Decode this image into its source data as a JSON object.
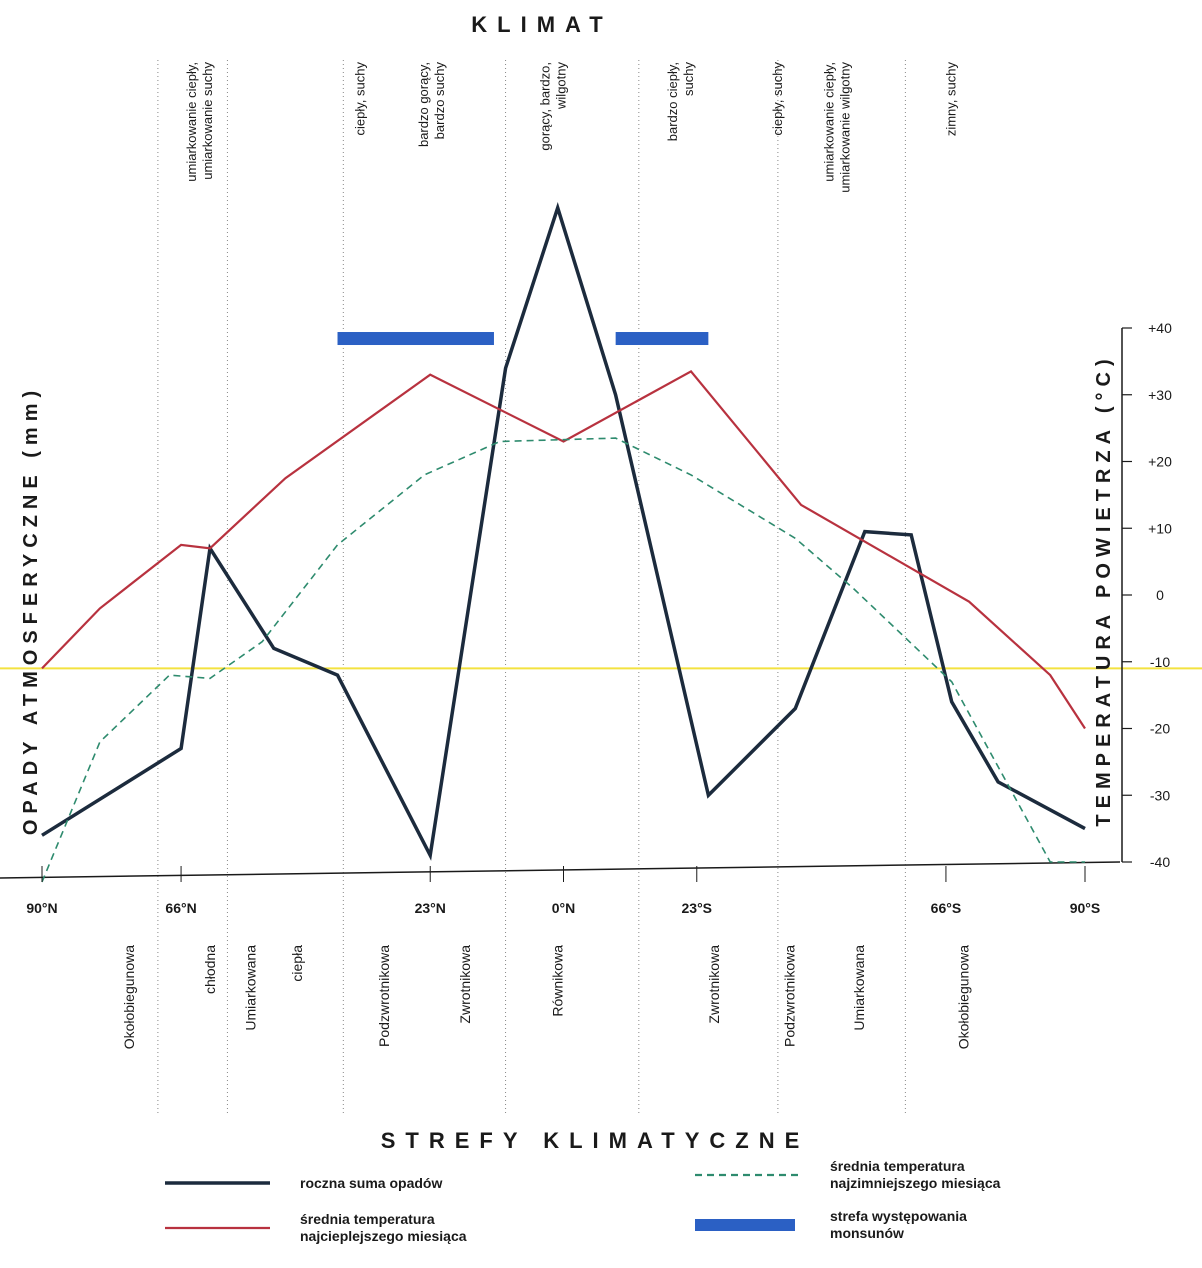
{
  "chart_data": {
    "type": "line",
    "title": "KLIMAT",
    "xlabel": "STREFY KLIMATYCZNE",
    "ylabel_left": "OPADY ATMOSFERYCZNE (mm)",
    "ylabel_right": "TEMPERATURA POWIETRZA (°C)",
    "x_ticks": [
      {
        "lat": 90,
        "label": "90°N"
      },
      {
        "lat": 66,
        "label": "66°N"
      },
      {
        "lat": 23,
        "label": "23°N"
      },
      {
        "lat": 0,
        "label": "0°N"
      },
      {
        "lat": -23,
        "label": "23°S"
      },
      {
        "lat": -66,
        "label": "66°S"
      },
      {
        "lat": -90,
        "label": "90°S"
      }
    ],
    "y_right_ticks": [
      "+40",
      "+30",
      "+20",
      "+10",
      "0",
      "-10",
      "-20",
      "-30",
      "-40"
    ],
    "y_right_values": [
      40,
      30,
      20,
      10,
      0,
      -10,
      -20,
      -30,
      -40
    ],
    "ylim_temp": [
      -40,
      40
    ],
    "reference_line_temp": -11,
    "climate_labels": [
      {
        "lat": 62,
        "lines": [
          "umiarkowanie ciepły,",
          "umiarkowanie suchy"
        ]
      },
      {
        "lat": 35,
        "lines": [
          "ciepły, suchy"
        ]
      },
      {
        "lat": 22,
        "lines": [
          "bardzo gorący,",
          "bardzo suchy"
        ]
      },
      {
        "lat": 1,
        "lines": [
          "gorący, bardzo,",
          "wilgotny"
        ]
      },
      {
        "lat": -21,
        "lines": [
          "bardzo ciepły,",
          "suchy"
        ]
      },
      {
        "lat": -37,
        "lines": [
          "ciepły, suchy"
        ]
      },
      {
        "lat": -48,
        "lines": [
          "umiarkowanie ciepły,",
          "umiarkowanie wilgotny"
        ]
      },
      {
        "lat": -67,
        "lines": [
          "zimny, suchy"
        ]
      }
    ],
    "zones": [
      {
        "lat": 75,
        "label": "Okołobiegunowa"
      },
      {
        "lat": 61,
        "label": "chłodna"
      },
      {
        "lat": 54,
        "label": "Umiarkowana"
      },
      {
        "lat": 46,
        "label": "ciepła"
      },
      {
        "lat": 31,
        "label": "Podzwrotnikowa"
      },
      {
        "lat": 17,
        "label": "Zwrotnikowa"
      },
      {
        "lat": 1,
        "label": "Równikowa"
      },
      {
        "lat": -26,
        "label": "Zwrotnikowa"
      },
      {
        "lat": -39,
        "label": "Podzwrotnikowa"
      },
      {
        "lat": -51,
        "label": "Umiarkowana"
      },
      {
        "lat": -69,
        "label": "Okołobiegunowa"
      }
    ],
    "zone_boundaries": [
      70,
      58,
      38,
      10,
      -13,
      -37,
      -59
    ],
    "series": [
      {
        "name": "roczna suma opadów",
        "color": "#1c2b3d",
        "style": "solid",
        "x": [
          90,
          66,
          61,
          50,
          39,
          23,
          10,
          1,
          -9,
          -25,
          -40,
          -52,
          -60,
          -67,
          -75,
          -90
        ],
        "y_temp_scale": [
          -36,
          -23,
          7,
          -8,
          -12,
          -39,
          34,
          58,
          30,
          -30,
          -17,
          9.5,
          9,
          -16,
          -28,
          -35
        ]
      },
      {
        "name": "średnia temperatura najcieplejszego miesiąca",
        "color": "#b8323f",
        "style": "solid",
        "x": [
          90,
          80,
          66,
          61,
          48,
          23,
          0,
          -22,
          -41,
          -60,
          -70,
          -84,
          -90
        ],
        "y": [
          -11,
          -2,
          7.5,
          7,
          17.5,
          33,
          23,
          33.5,
          13.5,
          4,
          -1,
          -12,
          -20
        ]
      },
      {
        "name": "średnia temperatura najzimniejszego miesiąca",
        "color": "#2e8b6e",
        "style": "dashed",
        "x": [
          90,
          80,
          68,
          61,
          52,
          39,
          24,
          11,
          -9,
          -22,
          -40,
          -50,
          -67,
          -84,
          -90
        ],
        "y": [
          -43,
          -22,
          -12,
          -12.5,
          -7,
          7.5,
          18,
          23,
          23.5,
          18,
          8.5,
          1,
          -13,
          -40,
          -40
        ]
      }
    ],
    "monsoon_zones": [
      {
        "from": 39,
        "to": 12
      },
      {
        "from": -9,
        "to": -25
      }
    ]
  },
  "legend": [
    {
      "lines": [
        "roczna suma opadów"
      ],
      "color": "#1c2b3d",
      "style": "solid"
    },
    {
      "lines": [
        "średnia temperatura",
        "najcieplejszego miesiąca"
      ],
      "color": "#b8323f",
      "style": "solid"
    },
    {
      "lines": [
        "średnia temperatura",
        "najzimniejszego miesiąca"
      ],
      "color": "#2e8b6e",
      "style": "dashed"
    },
    {
      "lines": [
        "strefa występowania",
        "monsunów"
      ],
      "color": "#2b60c4",
      "style": "band"
    }
  ],
  "colors": {
    "reference": "#f3e240",
    "monsoon": "#2b60c4",
    "axis": "#1a1a1a"
  }
}
